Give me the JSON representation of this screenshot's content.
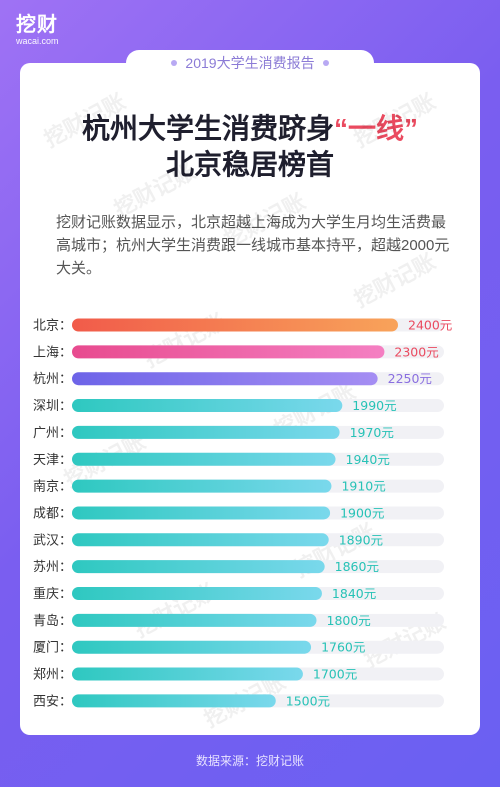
{
  "logo": {
    "brand": "挖财",
    "domain": "wacai.com"
  },
  "badge": "2019大学生消费报告",
  "title": {
    "line1_prefix": "杭州大学生消费跻身",
    "line1_highlight": "“一线”",
    "line2": "北京稳居榜首"
  },
  "description": "挖财记账数据显示，北京超越上海成为大学生月均生活费最高城市；杭州大学生消费跟一线城市基本持平，超越2000元大关。",
  "watermark": "挖财记账",
  "source": "数据来源：挖财记账",
  "colors": {
    "bg_start": "#9f72f4",
    "bg_end": "#6a60f2",
    "highlight": "#ea4a5f",
    "teal_value": "#27c2b6"
  },
  "chart_data": {
    "type": "bar",
    "orientation": "horizontal",
    "categories": [
      "北京：",
      "上海：",
      "杭州：",
      "深圳：",
      "广州：",
      "天津：",
      "南京：",
      "成都：",
      "武汉：",
      "苏州：",
      "重庆：",
      "青岛：",
      "厦门：",
      "郑州：",
      "西安："
    ],
    "values": [
      2400,
      2300,
      2250,
      1990,
      1970,
      1940,
      1910,
      1900,
      1890,
      1860,
      1840,
      1800,
      1760,
      1700,
      1500
    ],
    "value_labels": [
      "2400元",
      "2300元",
      "2250元",
      "1990元",
      "1970元",
      "1940元",
      "1910元",
      "1900元",
      "1890元",
      "1860元",
      "1840元",
      "1800元",
      "1760元",
      "1700元",
      "1500元"
    ],
    "bar_colors": [
      [
        "#f15b4a",
        "#f8a35a"
      ],
      [
        "#e84b8f",
        "#f47fc2"
      ],
      [
        "#6d64e8",
        "#a58ef3"
      ],
      [
        "#2ec8c0",
        "#7ad8ec"
      ],
      [
        "#2ec8c0",
        "#7ad8ec"
      ],
      [
        "#2ec8c0",
        "#7ad8ec"
      ],
      [
        "#2ec8c0",
        "#7ad8ec"
      ],
      [
        "#2ec8c0",
        "#7ad8ec"
      ],
      [
        "#2ec8c0",
        "#7ad8ec"
      ],
      [
        "#2ec8c0",
        "#7ad8ec"
      ],
      [
        "#2ec8c0",
        "#7ad8ec"
      ],
      [
        "#2ec8c0",
        "#7ad8ec"
      ],
      [
        "#2ec8c0",
        "#7ad8ec"
      ],
      [
        "#2ec8c0",
        "#7ad8ec"
      ],
      [
        "#2ec8c0",
        "#7ad8ec"
      ]
    ],
    "label_colors": [
      "#ea4a5f",
      "#ea4a5f",
      "#8a6fe0",
      "#27c2b6",
      "#27c2b6",
      "#27c2b6",
      "#27c2b6",
      "#27c2b6",
      "#27c2b6",
      "#27c2b6",
      "#27c2b6",
      "#27c2b6",
      "#27c2b6",
      "#27c2b6",
      "#27c2b6"
    ],
    "title": "",
    "xlabel": "",
    "ylabel": "",
    "xlim": [
      0,
      2400
    ],
    "grid": false,
    "legend": "none"
  }
}
